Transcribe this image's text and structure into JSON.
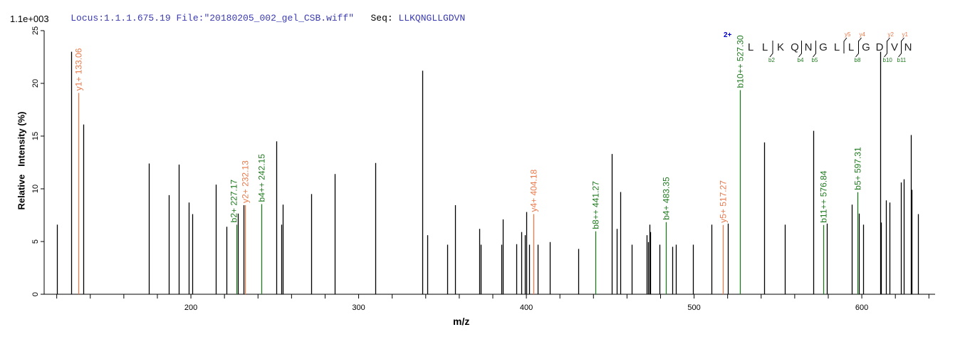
{
  "header": {
    "locus_file": "Locus:1.1.1.675.19 File:\"20180205_002_gel_CSB.wiff\"",
    "seq_label": "Seq:",
    "sequence": "LLKQNGLLGDVN"
  },
  "colors": {
    "header_blue": "#3a3ab0",
    "y_ion": "#e8794a",
    "b_ion": "#1f7a1f",
    "peak": "#000000",
    "charge": "#0000cc"
  },
  "sequence_annotation": {
    "charge": "2+",
    "residues": [
      "L",
      "L",
      "K",
      "Q",
      "N",
      "G",
      "L",
      "L",
      "G",
      "D",
      "V",
      "N"
    ],
    "b_ions": [
      {
        "label": "b2",
        "after": 2
      },
      {
        "label": "b4",
        "after": 4
      },
      {
        "label": "b5",
        "after": 5
      },
      {
        "label": "b8",
        "after": 8
      },
      {
        "label": "b10",
        "after": 10
      },
      {
        "label": "b11",
        "after": 11
      }
    ],
    "y_ions": [
      {
        "label": "y5",
        "after": 7
      },
      {
        "label": "y4",
        "after": 8
      },
      {
        "label": "y2",
        "after": 10
      },
      {
        "label": "y1",
        "after": 11
      }
    ]
  },
  "chart_data": {
    "type": "bar",
    "title": "",
    "multiplier": "1.1e+003",
    "xlabel": "m/z",
    "ylabel": "Relative   Intensity (%)",
    "xlim": [
      112.5,
      643.7
    ],
    "ylim": [
      0,
      25
    ],
    "xticks": [
      200,
      300,
      400,
      500,
      600
    ],
    "yticks": [
      0,
      5,
      10,
      15,
      20,
      25
    ],
    "grid": false,
    "peaks": [
      [
        120.0,
        6.6
      ],
      [
        128.8,
        23.0
      ],
      [
        136.0,
        16.1
      ],
      [
        175.1,
        12.4
      ],
      [
        187.0,
        9.4
      ],
      [
        192.9,
        12.3
      ],
      [
        198.9,
        8.7
      ],
      [
        201.0,
        7.6
      ],
      [
        215.0,
        10.4
      ],
      [
        221.0,
        6.4
      ],
      [
        228.0,
        7.65
      ],
      [
        231.3,
        8.45
      ],
      [
        251.1,
        14.5
      ],
      [
        254.1,
        6.6
      ],
      [
        254.9,
        8.5
      ],
      [
        271.9,
        9.5
      ],
      [
        285.8,
        11.4
      ],
      [
        310.1,
        12.45
      ],
      [
        338.1,
        21.2
      ],
      [
        341.1,
        5.6
      ],
      [
        353.0,
        4.7
      ],
      [
        357.3,
        8.45
      ],
      [
        372.1,
        6.2
      ],
      [
        372.9,
        4.7
      ],
      [
        385.3,
        4.7
      ],
      [
        386.1,
        7.1
      ],
      [
        394.2,
        4.75
      ],
      [
        397.2,
        5.9
      ],
      [
        399.3,
        5.6
      ],
      [
        400.1,
        7.8
      ],
      [
        401.8,
        4.7
      ],
      [
        406.9,
        4.7
      ],
      [
        414.1,
        4.95
      ],
      [
        431.1,
        4.3
      ],
      [
        451.1,
        13.3
      ],
      [
        454.1,
        6.2
      ],
      [
        456.2,
        9.7
      ],
      [
        463.0,
        4.7
      ],
      [
        471.9,
        5.6
      ],
      [
        472.4,
        4.95
      ],
      [
        473.3,
        6.6
      ],
      [
        474.0,
        5.9
      ],
      [
        479.3,
        4.7
      ],
      [
        487.2,
        4.5
      ],
      [
        489.3,
        4.7
      ],
      [
        499.2,
        4.7
      ],
      [
        510.5,
        6.6
      ],
      [
        520.3,
        6.7
      ],
      [
        542.0,
        14.4
      ],
      [
        554.3,
        6.6
      ],
      [
        571.3,
        15.5
      ],
      [
        579.3,
        6.7
      ],
      [
        594.2,
        8.5
      ],
      [
        598.4,
        7.65
      ],
      [
        600.9,
        6.6
      ],
      [
        610.8,
        23.0
      ],
      [
        611.3,
        6.8
      ],
      [
        614.2,
        8.9
      ],
      [
        616.4,
        8.7
      ],
      [
        623.2,
        10.6
      ],
      [
        625.2,
        10.9
      ],
      [
        629.1,
        15.1
      ],
      [
        629.5,
        9.9
      ],
      [
        633.7,
        7.6
      ]
    ],
    "annotations": [
      {
        "label": "y1+ 133.06",
        "mz": 133.06,
        "intensity": 19.1,
        "ion": "y"
      },
      {
        "label": "b2+ 227.17",
        "mz": 227.17,
        "intensity": 6.6,
        "ion": "b"
      },
      {
        "label": "y2+ 232.13",
        "mz": 232.13,
        "intensity": 8.45,
        "ion": "y"
      },
      {
        "label": "b4++ 242.15",
        "mz": 242.15,
        "intensity": 8.55,
        "ion": "b"
      },
      {
        "label": "y4+ 404.18",
        "mz": 404.18,
        "intensity": 7.6,
        "ion": "y"
      },
      {
        "label": "b8++ 441.27",
        "mz": 441.27,
        "intensity": 5.97,
        "ion": "b"
      },
      {
        "label": "b4+ 483.35",
        "mz": 483.35,
        "intensity": 6.84,
        "ion": "b"
      },
      {
        "label": "y5+ 517.27",
        "mz": 517.27,
        "intensity": 6.57,
        "ion": "y"
      },
      {
        "label": "b10++ 527.30",
        "mz": 527.3,
        "intensity": 19.36,
        "ion": "b"
      },
      {
        "label": "b11++ 576.84",
        "mz": 576.84,
        "intensity": 6.57,
        "ion": "b"
      },
      {
        "label": "b5+ 597.31",
        "mz": 597.31,
        "intensity": 9.68,
        "ion": "b"
      }
    ]
  }
}
